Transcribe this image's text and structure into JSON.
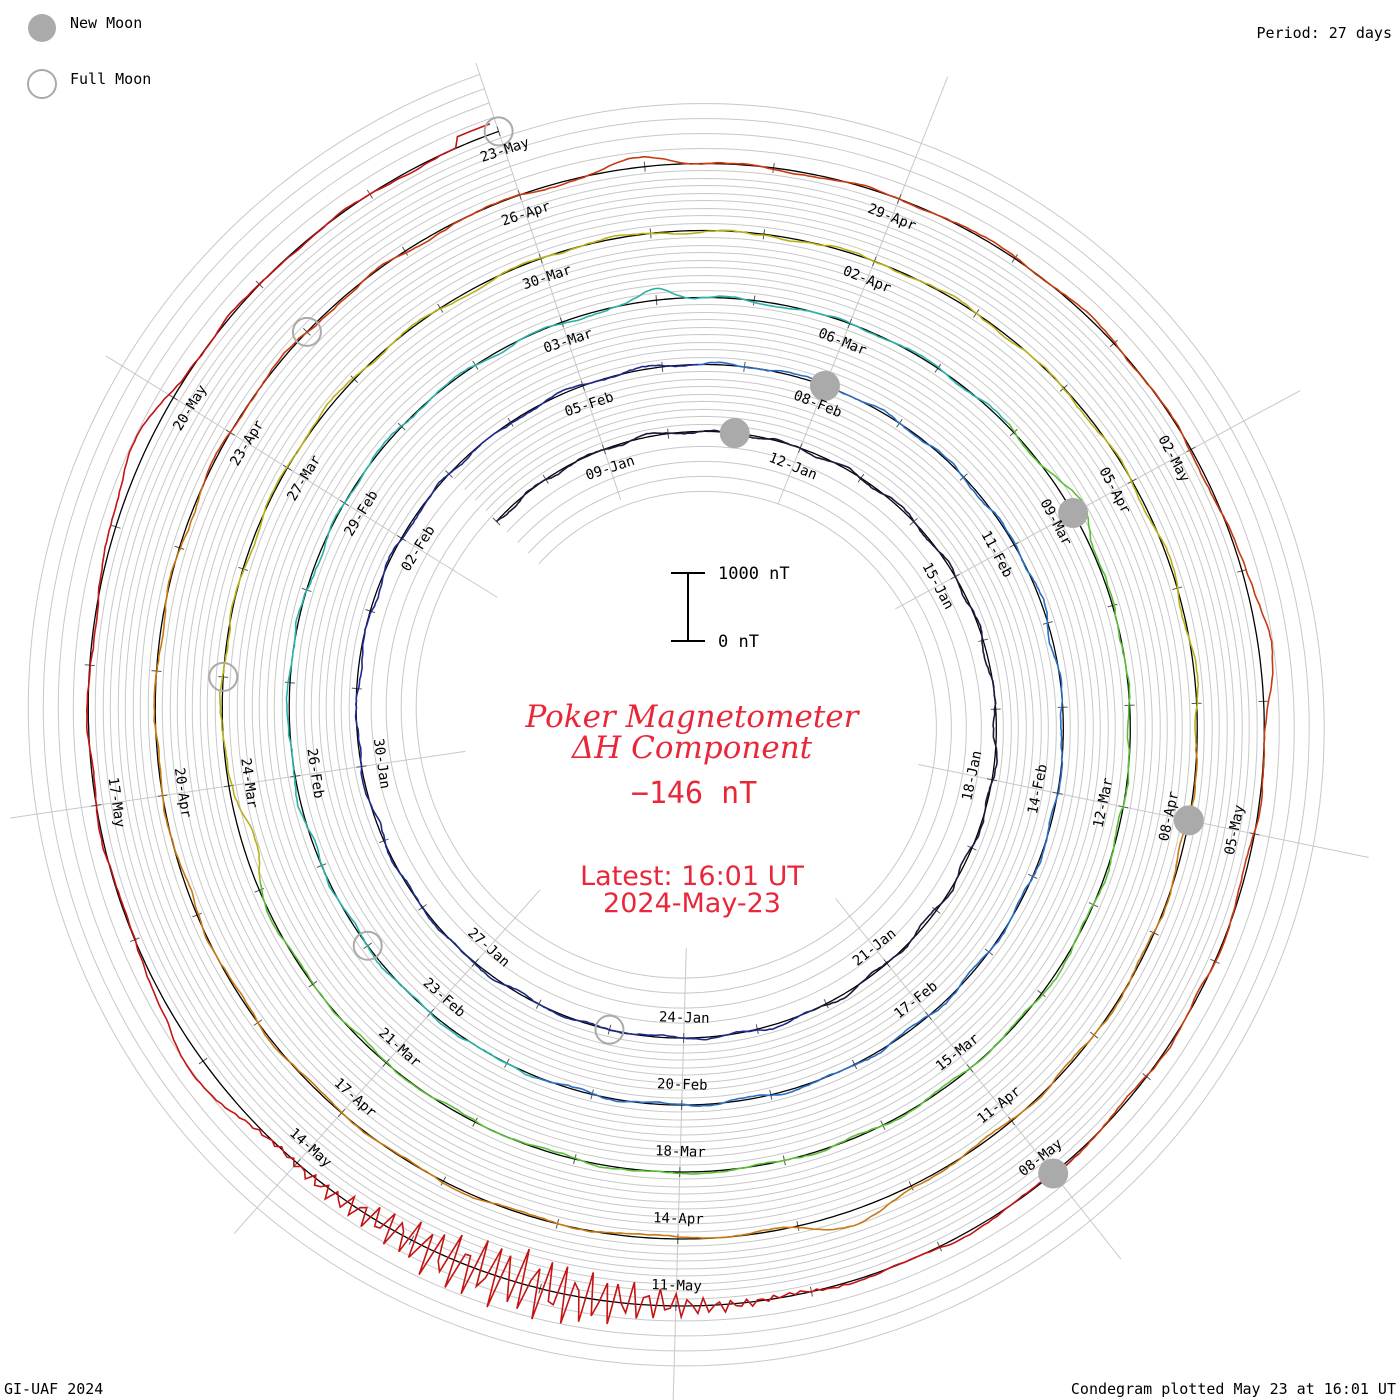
{
  "header": {
    "legend_new_moon": "New Moon",
    "legend_full_moon": "Full Moon",
    "period": "Period: 27 days"
  },
  "footer": {
    "left": "GI-UAF 2024",
    "right": "Condegram plotted May 23 at 16:01 UT"
  },
  "center": {
    "title_line1": "Poker Magnetometer",
    "title_line2": "ΔH Component",
    "current_value": "−146 nT",
    "latest_line1": "Latest: 16:01 UT",
    "latest_line2": "2024-May-23"
  },
  "scale_bar": {
    "top_label": "1000 nT",
    "bottom_label": "0 nT",
    "top_value": 1000,
    "bottom_value": 0
  },
  "colors": {
    "title": "#e8283a",
    "new_moon": "#aaaaaa",
    "full_moon": "#aaaaaa",
    "grid": "#c8c8c8",
    "baseline": "#000000"
  },
  "chart_data": {
    "type": "line",
    "layout": "condegram-spiral",
    "period_days": 27,
    "start_date": "2024-01-07",
    "end_date": "2024-05-23",
    "unit": "nT",
    "title": "Poker Magnetometer ΔH Component",
    "date_labels": [
      {
        "label": "09-Jan",
        "day": 2
      },
      {
        "label": "12-Jan",
        "day": 5
      },
      {
        "label": "15-Jan",
        "day": 8
      },
      {
        "label": "18-Jan",
        "day": 11
      },
      {
        "label": "21-Jan",
        "day": 14
      },
      {
        "label": "24-Jan",
        "day": 17
      },
      {
        "label": "27-Jan",
        "day": 20
      },
      {
        "label": "30-Jan",
        "day": 23
      },
      {
        "label": "02-Feb",
        "day": 26
      },
      {
        "label": "05-Feb",
        "day": 29
      },
      {
        "label": "08-Feb",
        "day": 32
      },
      {
        "label": "11-Feb",
        "day": 35
      },
      {
        "label": "14-Feb",
        "day": 38
      },
      {
        "label": "17-Feb",
        "day": 41
      },
      {
        "label": "20-Feb",
        "day": 44
      },
      {
        "label": "23-Feb",
        "day": 47
      },
      {
        "label": "26-Feb",
        "day": 50
      },
      {
        "label": "29-Feb",
        "day": 53
      },
      {
        "label": "03-Mar",
        "day": 56
      },
      {
        "label": "06-Mar",
        "day": 59
      },
      {
        "label": "09-Mar",
        "day": 62
      },
      {
        "label": "12-Mar",
        "day": 65
      },
      {
        "label": "15-Mar",
        "day": 68
      },
      {
        "label": "18-Mar",
        "day": 71
      },
      {
        "label": "21-Mar",
        "day": 74
      },
      {
        "label": "24-Mar",
        "day": 77
      },
      {
        "label": "27-Mar",
        "day": 80
      },
      {
        "label": "30-Mar",
        "day": 83
      },
      {
        "label": "02-Apr",
        "day": 86
      },
      {
        "label": "05-Apr",
        "day": 89
      },
      {
        "label": "08-Apr",
        "day": 92
      },
      {
        "label": "11-Apr",
        "day": 95
      },
      {
        "label": "14-Apr",
        "day": 98
      },
      {
        "label": "17-Apr",
        "day": 101
      },
      {
        "label": "20-Apr",
        "day": 104
      },
      {
        "label": "23-Apr",
        "day": 107
      },
      {
        "label": "26-Apr",
        "day": 110
      },
      {
        "label": "29-Apr",
        "day": 113
      },
      {
        "label": "02-May",
        "day": 116
      },
      {
        "label": "05-May",
        "day": 119
      },
      {
        "label": "08-May",
        "day": 122
      },
      {
        "label": "11-May",
        "day": 125
      },
      {
        "label": "14-May",
        "day": 128
      },
      {
        "label": "17-May",
        "day": 131
      },
      {
        "label": "20-May",
        "day": 134
      },
      {
        "label": "23-May",
        "day": 137
      }
    ],
    "new_moons_day": [
      4,
      32,
      62,
      92,
      122
    ],
    "full_moons_day": [
      18,
      48,
      78,
      108,
      137
    ],
    "series_colors": [
      "#1a1a3a",
      "#1e2a8a",
      "#2a6fc0",
      "#2bb3a8",
      "#5cbf3a",
      "#b8b11a",
      "#c87a14",
      "#c83a10",
      "#c41414"
    ],
    "features_nT": [
      {
        "day": 62.0,
        "width": 0.3,
        "amp": -180
      },
      {
        "day": 57.0,
        "width": 0.2,
        "amp": -180
      },
      {
        "day": 76.5,
        "width": 0.4,
        "amp": 200
      },
      {
        "day": 96.5,
        "width": 0.4,
        "amp": -220
      },
      {
        "day": 111.0,
        "width": 0.3,
        "amp": -160
      },
      {
        "day": 117.5,
        "width": 0.5,
        "amp": -180
      },
      {
        "day": 126.2,
        "width": 1.2,
        "amp": -500
      },
      {
        "day": 129.0,
        "width": 0.5,
        "amp": -250
      },
      {
        "day": 133.5,
        "width": 0.5,
        "amp": -200
      }
    ],
    "current_value_nT": -146
  }
}
